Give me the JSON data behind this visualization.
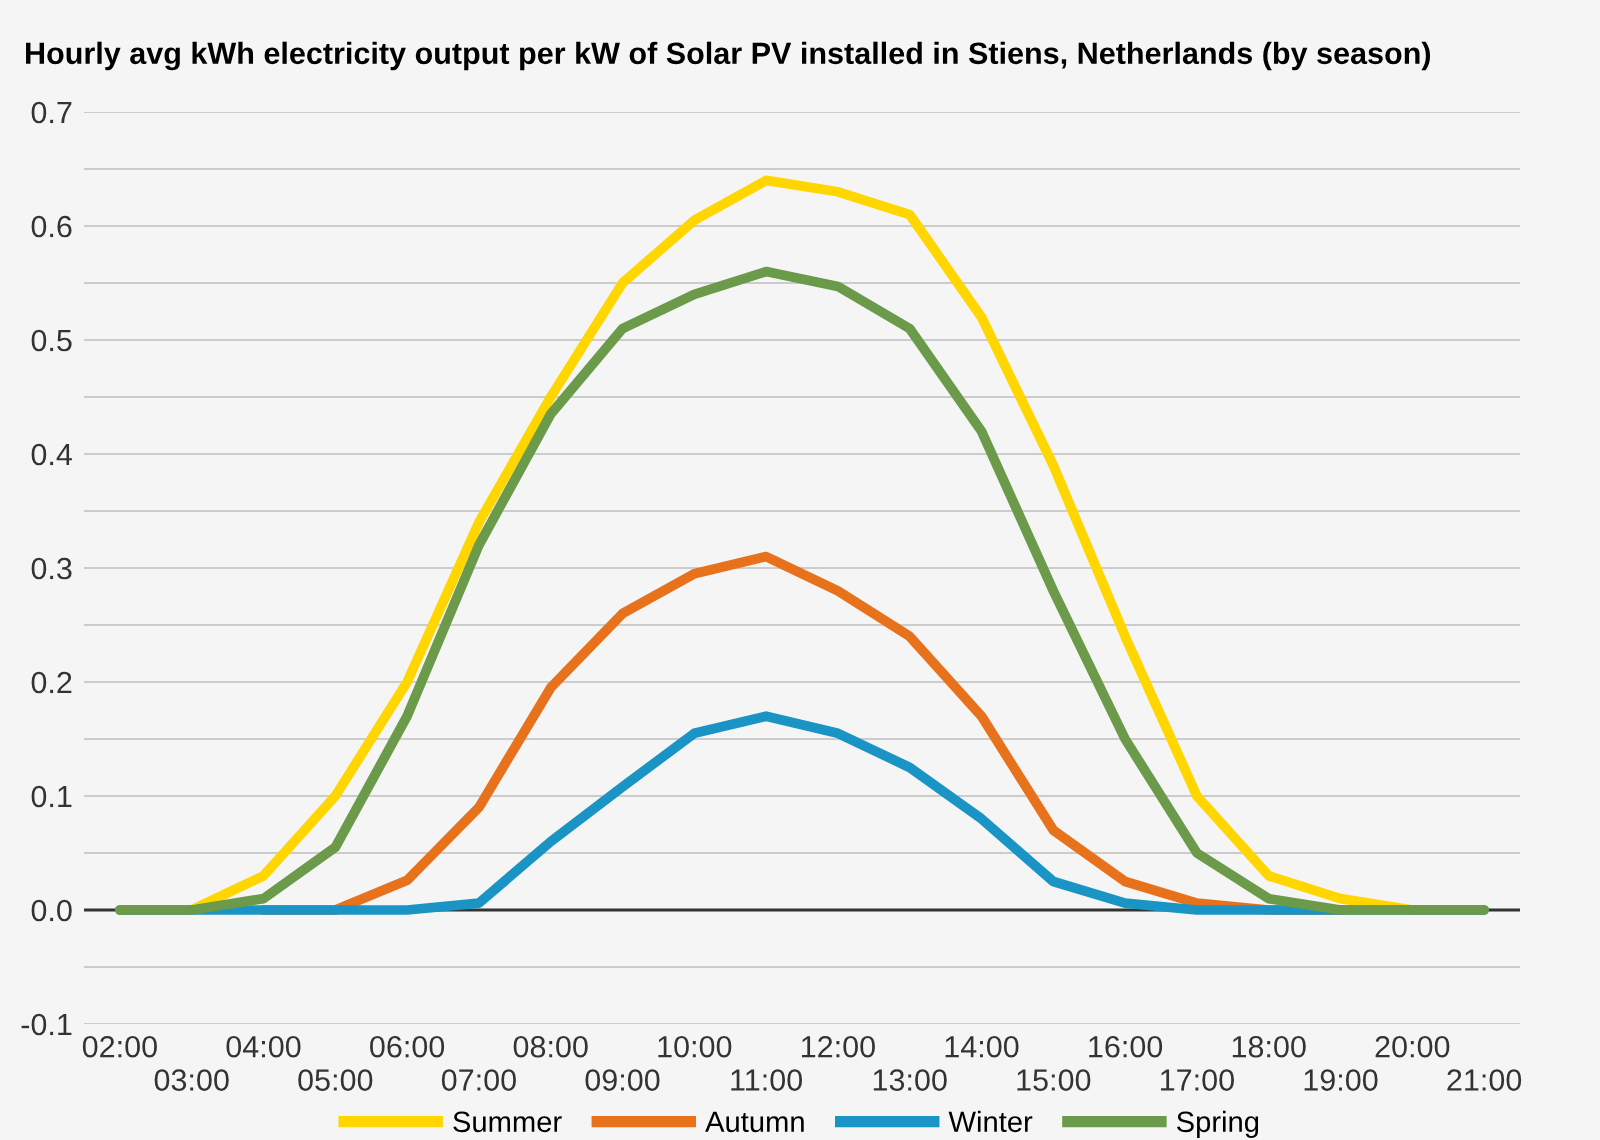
{
  "chart_data": {
    "type": "line",
    "title": "Hourly avg kWh electricity output per kW of Solar PV installed in Stiens, Netherlands (by season)",
    "categories": [
      "02:00",
      "03:00",
      "04:00",
      "05:00",
      "06:00",
      "07:00",
      "08:00",
      "09:00",
      "10:00",
      "11:00",
      "12:00",
      "13:00",
      "14:00",
      "15:00",
      "16:00",
      "17:00",
      "18:00",
      "19:00",
      "20:00",
      "21:00"
    ],
    "series": [
      {
        "name": "Summer",
        "color": "#ffd600",
        "values": [
          0,
          0,
          0.03,
          0.1,
          0.2,
          0.34,
          0.45,
          0.55,
          0.605,
          0.64,
          0.63,
          0.61,
          0.52,
          0.39,
          0.24,
          0.1,
          0.03,
          0.01,
          0,
          0
        ]
      },
      {
        "name": "Autumn",
        "color": "#e8711c",
        "values": [
          null,
          null,
          0,
          0,
          0.026,
          0.09,
          0.195,
          0.26,
          0.295,
          0.31,
          0.28,
          0.24,
          0.17,
          0.07,
          0.025,
          0.006,
          0,
          0,
          null,
          null
        ]
      },
      {
        "name": "Winter",
        "color": "#1a94c4",
        "values": [
          0,
          0,
          0,
          0,
          0,
          0.006,
          0.06,
          0.108,
          0.155,
          0.17,
          0.155,
          0.125,
          0.08,
          0.025,
          0.006,
          0,
          0,
          0,
          0,
          0
        ]
      },
      {
        "name": "Spring",
        "color": "#6a9a4a",
        "values": [
          0,
          0,
          0.01,
          0.055,
          0.17,
          0.32,
          0.435,
          0.51,
          0.54,
          0.56,
          0.547,
          0.51,
          0.42,
          0.28,
          0.15,
          0.05,
          0.01,
          0,
          0,
          0
        ]
      }
    ],
    "ylim": [
      -0.1,
      0.7
    ],
    "yticks": [
      -0.1,
      {
        "value": -0.05,
        "label": null
      },
      "0.0",
      {
        "value": 0.05,
        "label": null
      },
      0.1,
      {
        "value": 0.15,
        "label": null
      },
      0.2,
      {
        "value": 0.25,
        "label": null
      },
      0.3,
      {
        "value": 0.35,
        "label": null
      },
      0.4,
      {
        "value": 0.45,
        "label": null
      },
      0.5,
      {
        "value": 0.55,
        "label": null
      },
      0.6,
      {
        "value": 0.65,
        "label": null
      },
      0.7
    ],
    "ref_lines": [
      {
        "axis": "y",
        "value": 0,
        "color": "#333333"
      }
    ],
    "grid": "y",
    "legend": "bottom",
    "marker": "none",
    "line_style": "solid"
  }
}
